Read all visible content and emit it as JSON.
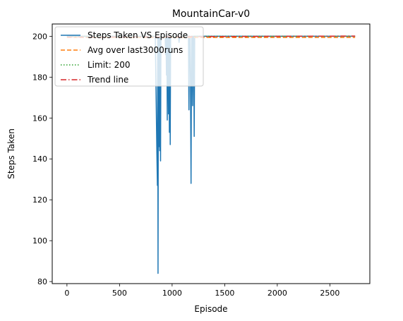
{
  "chart_data": {
    "type": "line",
    "title": "MountainCar-v0",
    "xlabel": "Episode",
    "ylabel": "Steps Taken",
    "xlim": [
      -140,
      2880
    ],
    "ylim": [
      79,
      206
    ],
    "xticks": [
      0,
      500,
      1000,
      1500,
      2000,
      2500
    ],
    "yticks": [
      80,
      100,
      120,
      140,
      160,
      180,
      200
    ],
    "grid": false,
    "legend_position": "top-left",
    "series": [
      {
        "name": "Steps Taken VS Episode",
        "style": "solid",
        "color": "#1f77b4",
        "x": [
          0,
          840,
          855,
          860,
          863,
          866,
          870,
          874,
          878,
          882,
          886,
          890,
          894,
          898,
          902,
          906,
          910,
          914,
          918,
          922,
          926,
          930,
          934,
          938,
          942,
          946,
          950,
          954,
          958,
          962,
          966,
          970,
          974,
          978,
          982,
          986,
          990,
          994,
          998,
          1002,
          1006,
          1010,
          1014,
          1018,
          1022,
          1030,
          1038,
          1046,
          1054,
          1060,
          1066,
          1072,
          1080,
          1090,
          1100,
          1110,
          1120,
          1130,
          1140,
          1150,
          1155,
          1160,
          1165,
          1170,
          1175,
          1180,
          1185,
          1190,
          1195,
          1200,
          1205,
          1210,
          1215,
          1220,
          1230,
          2740
        ],
        "values": [
          200,
          200,
          143,
          127,
          200,
          84,
          200,
          146,
          200,
          144,
          200,
          139,
          200,
          200,
          200,
          200,
          200,
          200,
          200,
          200,
          200,
          200,
          200,
          191,
          200,
          181,
          200,
          159,
          200,
          196,
          162,
          200,
          153,
          200,
          147,
          200,
          200,
          200,
          200,
          200,
          200,
          200,
          200,
          200,
          200,
          200,
          200,
          200,
          200,
          200,
          197,
          200,
          200,
          200,
          200,
          200,
          200,
          200,
          200,
          200,
          200,
          164,
          200,
          200,
          175,
          128,
          200,
          200,
          166,
          200,
          200,
          151,
          200,
          200,
          200,
          200
        ]
      },
      {
        "name": "Avg over last3000runs",
        "style": "dashed",
        "color": "#ff7f0e",
        "x": [
          0,
          2740
        ],
        "values": [
          199.4,
          199.4
        ]
      },
      {
        "name": "Limit: 200",
        "style": "dotted",
        "color": "#2ca02c",
        "x": [
          0,
          2740
        ],
        "values": [
          200,
          200
        ]
      },
      {
        "name": "Trend line",
        "style": "dashdot",
        "color": "#d62728",
        "x": [
          0,
          2740
        ],
        "values": [
          199.6,
          200.1
        ]
      }
    ]
  }
}
